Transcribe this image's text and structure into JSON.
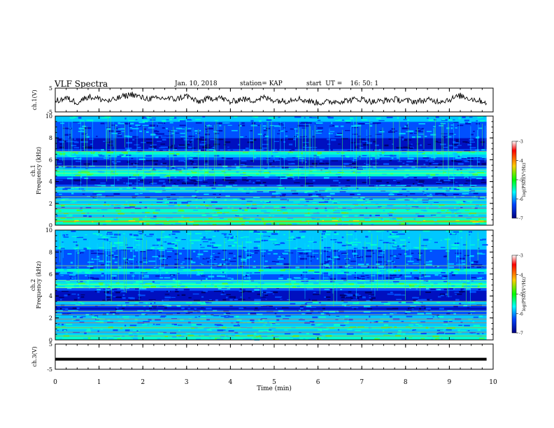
{
  "header": {
    "title": "VLF Spectra",
    "date": "Jan. 10, 2018",
    "station": "station= KAP",
    "start": "start  UT =    16: 50: 1"
  },
  "chart_data": [
    {
      "type": "line",
      "panel": "ch1-waveform",
      "ylabel": "ch.1(V)",
      "ylim": [
        -5,
        5
      ],
      "yticks": [
        "5",
        "-5"
      ],
      "x": [
        0,
        0.25,
        0.5,
        0.75,
        1,
        1.25,
        1.5,
        1.75,
        2,
        2.25,
        2.5,
        2.75,
        3,
        3.25,
        3.5,
        3.75,
        4,
        4.25,
        4.5,
        4.75,
        5,
        5.25,
        5.5,
        5.75,
        6,
        6.25,
        6.5,
        6.75,
        7,
        7.25,
        7.5,
        7.75,
        8,
        8.25,
        8.5,
        8.75,
        9,
        9.25,
        9.5,
        9.75
      ],
      "values": [
        -0.5,
        0.8,
        -1.0,
        1.5,
        0.5,
        -0.5,
        1.2,
        2.5,
        0.8,
        0.5,
        0.8,
        0.3,
        1.8,
        -0.8,
        0.5,
        1.2,
        -1.0,
        0.5,
        -0.2,
        1.0,
        0.0,
        -0.5,
        0.8,
        -0.3,
        -1.2,
        -0.8,
        -0.5,
        0.0,
        0.5,
        -0.8,
        -0.3,
        0.3,
        -0.3,
        -0.6,
        0.0,
        -0.5,
        0.2,
        1.8,
        0.5,
        -0.5
      ],
      "xlim": [
        0,
        10
      ]
    },
    {
      "type": "heatmap",
      "panel": "ch1-spectrogram",
      "ylabel_top": "ch.1",
      "ylabel": "Frequency (kHz)",
      "ylim": [
        0,
        10
      ],
      "yticks": [
        "0",
        "2",
        "4",
        "6",
        "8",
        "10"
      ],
      "xlim": [
        0,
        10
      ],
      "levels_by_freq_khz": [
        4.0,
        4.5,
        3.6,
        3.0,
        4.2,
        3.6,
        3.0,
        3.8,
        3.2,
        2.6,
        2.2,
        2.0,
        2.6,
        3.4,
        1.6,
        1.0,
        1.2,
        2.4,
        3.6,
        4.2,
        2.8,
        1.6,
        1.0,
        1.0,
        1.8,
        2.8,
        3.6,
        1.8,
        1.0,
        1.2,
        1.4,
        1.4,
        1.6,
        1.6,
        1.8,
        2.0,
        2.2,
        2.4,
        2.6,
        2.8
      ],
      "colorbar": {
        "label": "log(PSD)(V²/Hz)",
        "ticks": [
          "-3",
          "-4",
          "-5",
          "-6",
          "-7"
        ],
        "colors": [
          "#ffffff",
          "#ff0000",
          "#ffcc00",
          "#00ff00",
          "#00ffff",
          "#0044ff",
          "#000080"
        ]
      }
    },
    {
      "type": "heatmap",
      "panel": "ch2-spectrogram",
      "ylabel_top": "ch.2",
      "ylabel": "Frequency (kHz)",
      "ylim": [
        0,
        10
      ],
      "yticks": [
        "0",
        "2",
        "4",
        "6",
        "8",
        "10"
      ],
      "xlim": [
        0,
        10
      ],
      "levels_by_freq_khz": [
        4.0,
        4.2,
        3.2,
        2.6,
        3.8,
        3.0,
        2.6,
        3.0,
        2.6,
        2.0,
        1.6,
        1.4,
        2.0,
        2.8,
        1.4,
        0.9,
        1.0,
        1.2,
        2.2,
        3.6,
        4.0,
        2.6,
        2.0,
        1.8,
        3.0,
        3.6,
        2.2,
        1.8,
        1.8,
        2.0,
        2.2,
        2.4,
        2.4,
        2.6,
        2.6,
        2.8,
        2.8,
        3.0,
        3.0,
        3.0
      ],
      "colorbar": {
        "label": "log(PSD)(V²/Hz)",
        "ticks": [
          "-3",
          "-4",
          "-5",
          "-6",
          "-7"
        ],
        "colors": [
          "#ffffff",
          "#ff0000",
          "#ffcc00",
          "#00ff00",
          "#00ffff",
          "#0044ff",
          "#000080"
        ]
      }
    },
    {
      "type": "line",
      "panel": "ch3-waveform",
      "ylabel": "ch.3(V)",
      "ylim": [
        -5,
        5
      ],
      "yticks": [
        "5",
        "-5"
      ],
      "x": [
        0,
        9.85
      ],
      "values": [
        -1.0,
        -1.0
      ],
      "xlim": [
        0,
        10
      ],
      "xlabel": "Time (min)",
      "xticks": [
        "0",
        "1",
        "2",
        "3",
        "4",
        "5",
        "6",
        "7",
        "8",
        "9",
        "10"
      ]
    }
  ]
}
